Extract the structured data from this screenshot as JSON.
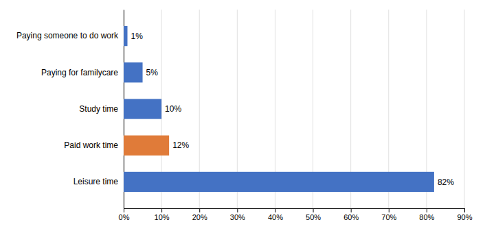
{
  "chart_data": {
    "type": "bar",
    "orientation": "horizontal",
    "categories": [
      "Leisure time",
      "Paid work time",
      "Study time",
      "Paying for familycare",
      "Paying someone to do work"
    ],
    "values": [
      82,
      12,
      10,
      5,
      1
    ],
    "value_labels": [
      "82%",
      "12%",
      "10%",
      "5%",
      "1%"
    ],
    "data_labels": true,
    "colors": [
      "#4472C4",
      "#E07B39",
      "#4472C4",
      "#4472C4",
      "#4472C4"
    ],
    "xlim": [
      0,
      90
    ],
    "xticks": [
      {
        "value": 0,
        "label": "0%"
      },
      {
        "value": 10,
        "label": "10%"
      },
      {
        "value": 20,
        "label": "20%"
      },
      {
        "value": 30,
        "label": "30%"
      },
      {
        "value": 40,
        "label": "40%"
      },
      {
        "value": 50,
        "label": "50%"
      },
      {
        "value": 60,
        "label": "60%"
      },
      {
        "value": 70,
        "label": "70%"
      },
      {
        "value": 80,
        "label": "80%"
      },
      {
        "value": 90,
        "label": "90%"
      }
    ],
    "grid": true
  }
}
